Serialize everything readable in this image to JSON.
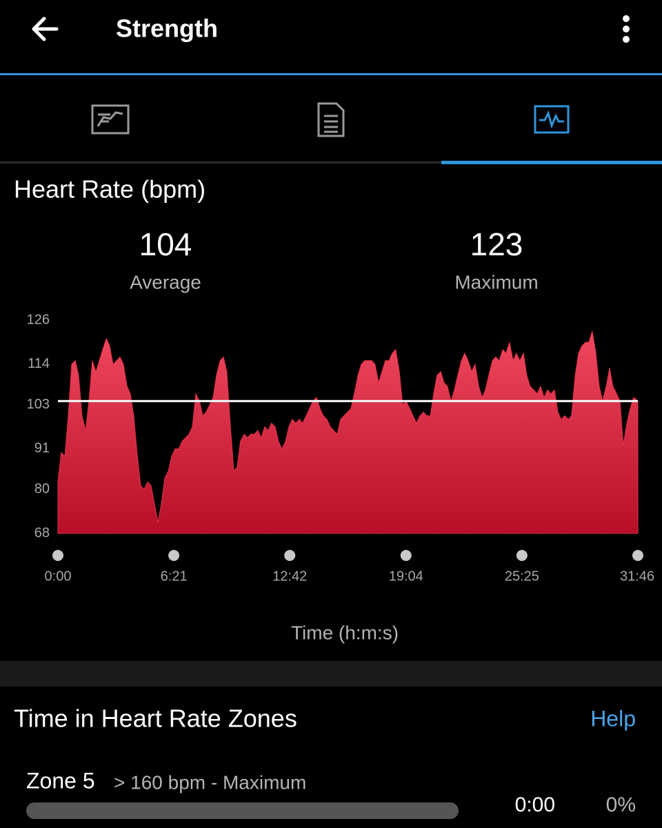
{
  "header": {
    "title": "Strength"
  },
  "chart_data": {
    "type": "area",
    "title": "Heart Rate (bpm)",
    "stats": [
      {
        "value": 104,
        "label": "Average"
      },
      {
        "value": 123,
        "label": "Maximum"
      }
    ],
    "x_label": "Time (h:m:s)",
    "color": "#e0304a",
    "xlim": [
      0,
      1906
    ],
    "xticks": [
      {
        "value": 0,
        "label": "0:00"
      },
      {
        "value": 381,
        "label": "6:21"
      },
      {
        "value": 762,
        "label": "12:42"
      },
      {
        "value": 1144,
        "label": "19:04"
      },
      {
        "value": 1525,
        "label": "25:25"
      },
      {
        "value": 1906,
        "label": "31:46"
      }
    ],
    "ylim": [
      68,
      126
    ],
    "yticks": [
      68,
      80,
      91,
      103,
      114,
      126
    ],
    "x": [
      0,
      11,
      23,
      34,
      45,
      57,
      68,
      79,
      91,
      102,
      113,
      125,
      136,
      147,
      159,
      170,
      181,
      193,
      204,
      215,
      227,
      238,
      249,
      261,
      272,
      283,
      295,
      306,
      317,
      329,
      340,
      351,
      363,
      374,
      385,
      397,
      408,
      419,
      431,
      442,
      453,
      465,
      476,
      487,
      499,
      510,
      521,
      533,
      544,
      555,
      567,
      578,
      589,
      600,
      612,
      623,
      634,
      646,
      657,
      668,
      680,
      691,
      702,
      714,
      725,
      736,
      748,
      759,
      770,
      782,
      793,
      804,
      816,
      827,
      838,
      850,
      861,
      872,
      884,
      895,
      906,
      918,
      929,
      940,
      952,
      963,
      974,
      986,
      997,
      1008,
      1020,
      1031,
      1042,
      1054,
      1065,
      1076,
      1088,
      1099,
      1110,
      1122,
      1133,
      1144,
      1156,
      1167,
      1178,
      1190,
      1201,
      1212,
      1224,
      1235,
      1246,
      1258,
      1269,
      1280,
      1292,
      1303,
      1314,
      1326,
      1337,
      1348,
      1360,
      1371,
      1383,
      1394,
      1405,
      1416,
      1428,
      1439,
      1450,
      1462,
      1473,
      1484,
      1496,
      1507,
      1518,
      1530,
      1541,
      1552,
      1564,
      1575,
      1586,
      1598,
      1609,
      1620,
      1632,
      1643,
      1654,
      1666,
      1677,
      1688,
      1700,
      1711,
      1722,
      1734,
      1745,
      1756,
      1768,
      1779,
      1790,
      1802,
      1813,
      1824,
      1836,
      1847,
      1858,
      1870,
      1881,
      1892,
      1906
    ],
    "values": [
      82,
      90,
      89,
      100,
      114,
      115,
      111,
      100,
      96,
      104,
      115,
      112,
      115,
      118,
      121,
      119,
      114,
      115,
      116,
      114,
      108,
      106,
      100,
      89,
      81,
      80,
      82,
      81,
      76,
      71,
      76,
      83,
      85,
      89,
      91,
      91,
      93,
      94,
      95,
      97,
      106,
      104,
      100,
      101,
      103,
      105,
      111,
      115,
      116,
      112,
      97,
      85,
      86,
      93,
      95,
      94,
      95,
      95,
      96,
      94,
      97,
      96,
      98,
      97,
      93,
      91,
      93,
      97,
      99,
      98,
      99,
      98,
      100,
      102,
      104,
      105,
      102,
      100,
      99,
      97,
      96,
      95,
      99,
      100,
      101,
      102,
      106,
      111,
      114,
      115,
      115,
      115,
      114,
      109,
      112,
      115,
      115,
      117,
      118,
      112,
      103,
      104,
      102,
      100,
      98,
      100,
      101,
      100,
      100,
      106,
      111,
      112,
      109,
      108,
      104,
      107,
      111,
      115,
      117,
      115,
      112,
      114,
      108,
      105,
      107,
      111,
      115,
      116,
      115,
      118,
      117,
      120,
      115,
      117,
      115,
      117,
      111,
      108,
      107,
      106,
      108,
      105,
      107,
      106,
      107,
      101,
      99,
      100,
      99,
      100,
      111,
      117,
      119,
      120,
      120,
      123,
      117,
      108,
      104,
      108,
      113,
      108,
      106,
      104,
      92,
      98,
      102,
      105,
      104
    ]
  },
  "zones": {
    "title": "Time in Heart Rate Zones",
    "help": "Help",
    "rows": [
      {
        "name": "Zone 5",
        "range": "> 160 bpm - Maximum",
        "time": "0:00",
        "percent": "0%"
      }
    ]
  }
}
